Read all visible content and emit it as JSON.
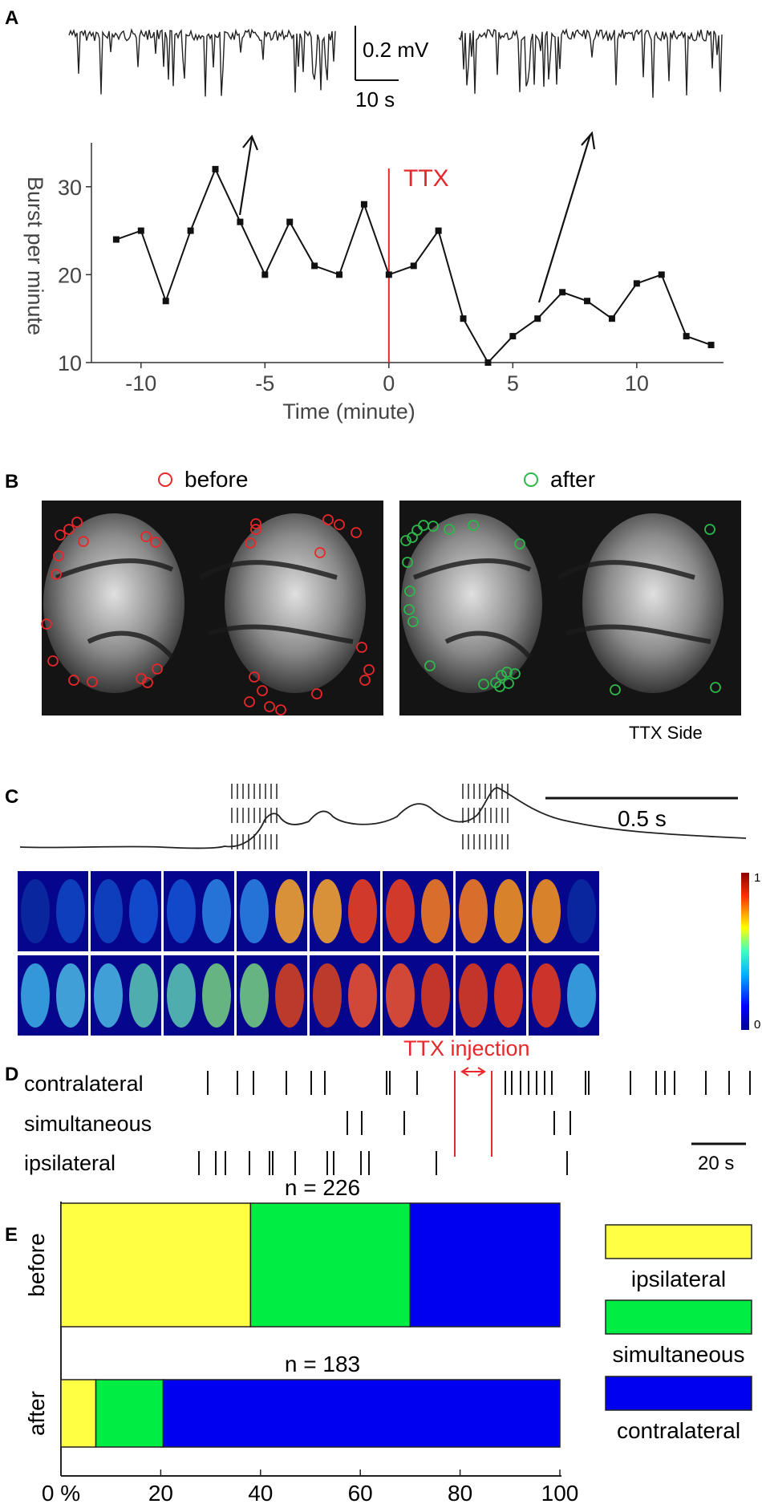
{
  "panels": {
    "a": "A",
    "b": "B",
    "c": "C",
    "d": "D",
    "e": "E"
  },
  "panel_a": {
    "scale_voltage": "0.2 mV",
    "scale_time": "10 s"
  },
  "panel_b": {
    "legend_before": "before",
    "legend_after": "after",
    "caption": "TTX Side",
    "colors": {
      "before": "#e8272a",
      "after": "#2db84b"
    }
  },
  "panel_c": {
    "scale_label": "0.5 s",
    "colorbar_max": "1",
    "colorbar_min": "0"
  },
  "panel_d": {
    "title": "TTX injection",
    "rows": [
      "contralateral",
      "simultaneous",
      "ipsilateral"
    ],
    "scale_label": "20 s",
    "colors": {
      "ttx": "#e8272a",
      "tick": "#111111"
    }
  },
  "chart_data": [
    {
      "id": "A",
      "type": "line",
      "title": "",
      "xlabel": "Time (minute)",
      "ylabel": "Burst per minute",
      "annotation": "TTX",
      "annotation_x": 0,
      "xlim": [
        -12,
        13.5
      ],
      "ylim": [
        10,
        35
      ],
      "xticks": [
        -10,
        -5,
        0,
        5,
        10
      ],
      "yticks": [
        10,
        20,
        30
      ],
      "xtick_labels": [
        "-10",
        "-5",
        "0",
        "5",
        "10"
      ],
      "ytick_labels": [
        "10",
        "20",
        "30"
      ],
      "x": [
        -11,
        -10,
        -9,
        -8,
        -7,
        -6,
        -5,
        -4,
        -3,
        -2,
        -1,
        0,
        1,
        2,
        3,
        4,
        5,
        6,
        7,
        8,
        9,
        10,
        11,
        12,
        13
      ],
      "y": [
        24,
        25,
        17,
        25,
        32,
        26,
        20,
        26,
        21,
        20,
        28,
        20,
        21,
        25,
        15,
        10,
        13,
        15,
        18,
        17,
        15,
        19,
        20,
        13,
        12
      ],
      "colors": {
        "line": "#111111",
        "ttx": "#e8272a"
      }
    },
    {
      "id": "E",
      "type": "bar",
      "orientation": "horizontal",
      "stacked": true,
      "categories": [
        "before",
        "after"
      ],
      "annotations": [
        "n = 226",
        "n = 183"
      ],
      "xlim": [
        0,
        100
      ],
      "xticks": [
        0,
        20,
        40,
        60,
        80,
        100
      ],
      "xtick_labels": [
        "0 %",
        "20",
        "40",
        "60",
        "80",
        "100"
      ],
      "legend_position": "right",
      "series": [
        {
          "name": "ipsilateral",
          "values": [
            38,
            7
          ],
          "color": "#ffff44"
        },
        {
          "name": "simultaneous",
          "values": [
            32,
            13.5
          ],
          "color": "#00ee44"
        },
        {
          "name": "contralateral",
          "values": [
            30,
            79.5
          ],
          "color": "#0000f0"
        }
      ]
    }
  ]
}
